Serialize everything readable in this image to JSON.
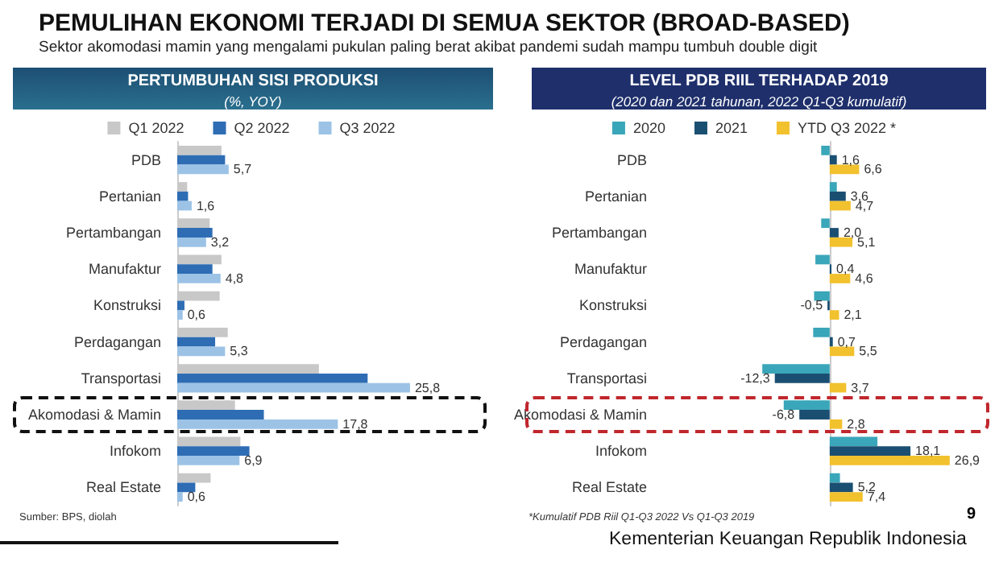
{
  "chart_data": [
    {
      "type": "bar",
      "orientation": "horizontal",
      "title": "PERTUMBUHAN SISI PRODUKSI",
      "subtitle": "(%, YOY)",
      "annotations": [
        "PEMULIHAN EKONOMI TERJADI DI SEMUA SEKTOR (BROAD-BASED)",
        "Sektor akomodasi mamin yang mengalami pukulan paling berat akibat pandemi sudah mampu tumbuh double digit",
        "Sumber: BPS, diolah"
      ],
      "categories": [
        "PDB",
        "Pertanian",
        "Pertambangan",
        "Manufaktur",
        "Konstruksi",
        "Perdagangan",
        "Transportasi",
        "Akomodasi & Mamin",
        "Infokom",
        "Real Estate"
      ],
      "series": [
        {
          "name": "Q1 2022",
          "color": "#c8c8c8",
          "values": [
            4.9,
            1.1,
            3.6,
            4.9,
            4.7,
            5.6,
            15.7,
            6.4,
            7.0,
            3.7
          ]
        },
        {
          "name": "Q2 2022",
          "color": "#2e6db4",
          "values": [
            5.3,
            1.2,
            3.9,
            3.9,
            0.8,
            4.2,
            21.1,
            9.6,
            8.0,
            2.0
          ]
        },
        {
          "name": "Q3 2022",
          "color": "#9cc3e6",
          "values": [
            5.7,
            1.6,
            3.2,
            4.8,
            0.6,
            5.3,
            25.8,
            17.8,
            6.9,
            0.6
          ],
          "value_labels": [
            "5,7",
            "1,6",
            "3,2",
            "4,8",
            "0,6",
            "5,3",
            "25,8",
            "17,8",
            "6,9",
            "0,6"
          ]
        }
      ],
      "legend": "top"
    },
    {
      "type": "bar",
      "orientation": "horizontal",
      "title": "LEVEL PDB RIIL TERHADAP 2019",
      "subtitle": "(2020 dan 2021 tahunan, 2022 Q1-Q3 kumulatif)",
      "annotations": [
        "*Kumulatif PDB Riil Q1-Q3 2022 Vs Q1-Q3 2019",
        "9",
        "Kementerian Keuangan Republik Indonesia"
      ],
      "categories": [
        "PDB",
        "Pertanian",
        "Pertambangan",
        "Manufaktur",
        "Konstruksi",
        "Perdagangan",
        "Transportasi",
        "Akomodasi & Mamin",
        "Infokom",
        "Real Estate"
      ],
      "series": [
        {
          "name": "2020",
          "color": "#3aa6b9",
          "values": [
            -1.9,
            1.6,
            -1.9,
            -3.2,
            -3.5,
            -3.7,
            -15.1,
            -10.3,
            10.7,
            2.3
          ]
        },
        {
          "name": "2021",
          "color": "#1b4f72",
          "values": [
            1.6,
            3.6,
            2.0,
            0.4,
            -0.5,
            0.7,
            -12.3,
            -6.8,
            18.1,
            5.2
          ],
          "value_labels": [
            "1,6",
            "3,6",
            "2,0",
            "0,4",
            "-0,5",
            "0,7",
            "-12,3",
            "-6,8",
            "18,1",
            "5,2"
          ]
        },
        {
          "name": "YTD Q3 2022 *",
          "color": "#f2c12e",
          "values": [
            6.6,
            4.7,
            5.1,
            4.6,
            2.1,
            5.5,
            3.7,
            2.8,
            26.9,
            7.4
          ],
          "value_labels": [
            "6,6",
            "4,7",
            "5,1",
            "4,6",
            "2,1",
            "5,5",
            "3,7",
            "2,8",
            "26,9",
            "7,4"
          ]
        }
      ],
      "legend": "top"
    }
  ]
}
